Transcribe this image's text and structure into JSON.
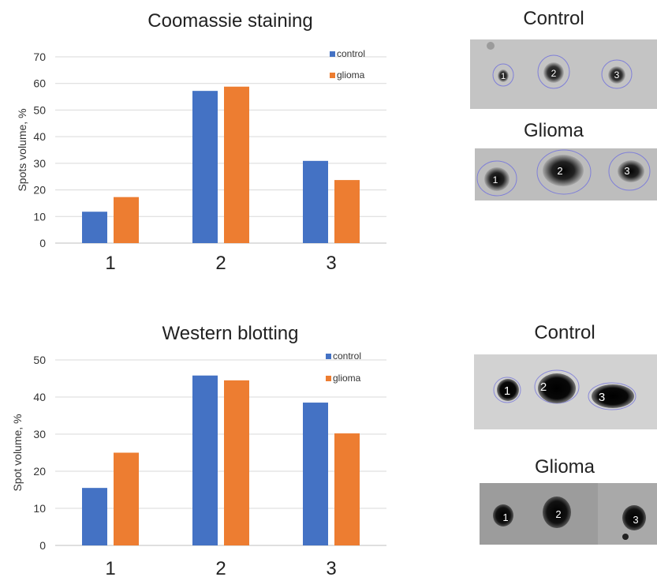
{
  "chart_data": [
    {
      "type": "bar",
      "title": "Coomassie staining",
      "ylabel": "Spots volume, %",
      "xlabel": "",
      "categories": [
        "1",
        "2",
        "3"
      ],
      "yticks": [
        0,
        10,
        20,
        30,
        40,
        50,
        60,
        70
      ],
      "ylim": [
        0,
        70
      ],
      "grid": true,
      "legend": "top-right",
      "series": [
        {
          "name": "control",
          "color": "#4472C4",
          "values": [
            11.8,
            57.2,
            30.9
          ]
        },
        {
          "name": "glioma",
          "color": "#ED7D31",
          "values": [
            17.3,
            58.8,
            23.7
          ]
        }
      ]
    },
    {
      "type": "bar",
      "title": "Western blotting",
      "ylabel": "Spot volume, %",
      "xlabel": "",
      "categories": [
        "1",
        "2",
        "3"
      ],
      "yticks": [
        0,
        10,
        20,
        30,
        40,
        50
      ],
      "ylim": [
        0,
        50
      ],
      "grid": true,
      "legend": "top-right",
      "series": [
        {
          "name": "control",
          "color": "#4472C4",
          "values": [
            15.5,
            45.8,
            38.5
          ]
        },
        {
          "name": "glioma",
          "color": "#ED7D31",
          "values": [
            25.0,
            44.5,
            30.2
          ]
        }
      ]
    }
  ],
  "blots": [
    {
      "title": "Control",
      "style": "coomassie-light",
      "spot_labels": [
        "1",
        "2",
        "3"
      ]
    },
    {
      "title": "Glioma",
      "style": "coomassie-dark",
      "spot_labels": [
        "1",
        "2",
        "3"
      ]
    },
    {
      "title": "Control",
      "style": "western-control",
      "spot_labels": [
        "1",
        "2",
        "3"
      ]
    },
    {
      "title": "Glioma",
      "style": "western-glioma",
      "spot_labels": [
        "1",
        "2",
        "3"
      ]
    }
  ]
}
